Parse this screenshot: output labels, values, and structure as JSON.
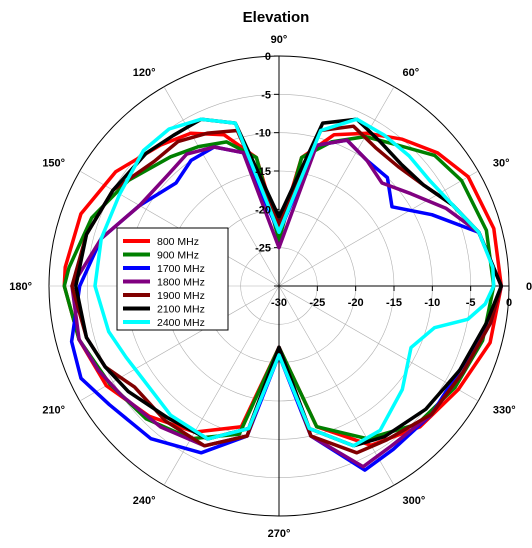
{
  "chart_data": {
    "type": "polar-line",
    "title": "Elevation",
    "angle_unit": "deg",
    "angle_ticks": [
      {
        "deg": 0,
        "label": "0°"
      },
      {
        "deg": 30,
        "label": "30°"
      },
      {
        "deg": 60,
        "label": "60°"
      },
      {
        "deg": 90,
        "label": "90°"
      },
      {
        "deg": 120,
        "label": "120°"
      },
      {
        "deg": 150,
        "label": "150°"
      },
      {
        "deg": 180,
        "label": "180°"
      },
      {
        "deg": 210,
        "label": "210°"
      },
      {
        "deg": 240,
        "label": "240°"
      },
      {
        "deg": 270,
        "label": "270°"
      },
      {
        "deg": 300,
        "label": "300°"
      },
      {
        "deg": 330,
        "label": "330°"
      }
    ],
    "radial_range": [
      -30,
      0
    ],
    "radial_ticks": [
      {
        "value": -30,
        "label": "-30"
      },
      {
        "value": -25,
        "label": "-25"
      },
      {
        "value": -20,
        "label": "-20"
      },
      {
        "value": -15,
        "label": "-15"
      },
      {
        "value": -10,
        "label": "-10"
      },
      {
        "value": -5,
        "label": "-5"
      },
      {
        "value": 0,
        "label": "0"
      }
    ],
    "grid": true,
    "legend": "middle-left",
    "series": [
      {
        "name": "800 MHz",
        "color": "#ff0000",
        "points": [
          [
            0,
            -1
          ],
          [
            15,
            -1
          ],
          [
            30,
            -1.5
          ],
          [
            40,
            -3
          ],
          [
            50,
            -5
          ],
          [
            60,
            -7
          ],
          [
            70,
            -9
          ],
          [
            80,
            -13
          ],
          [
            90,
            -23
          ],
          [
            100,
            -13
          ],
          [
            110,
            -9
          ],
          [
            120,
            -7
          ],
          [
            130,
            -6
          ],
          [
            145,
            -4
          ],
          [
            160,
            -2.5
          ],
          [
            175,
            -2
          ],
          [
            180,
            -2
          ],
          [
            195,
            -3
          ],
          [
            210,
            -4
          ],
          [
            225,
            -6
          ],
          [
            240,
            -8
          ],
          [
            255,
            -11
          ],
          [
            270,
            -22
          ],
          [
            285,
            -11
          ],
          [
            300,
            -6
          ],
          [
            315,
            -4
          ],
          [
            330,
            -3
          ],
          [
            345,
            -1.5
          ],
          [
            360,
            -1
          ]
        ]
      },
      {
        "name": "900 MHz",
        "color": "#008000",
        "points": [
          [
            0,
            -2
          ],
          [
            15,
            -2
          ],
          [
            30,
            -2.5
          ],
          [
            40,
            -3.5
          ],
          [
            50,
            -6
          ],
          [
            60,
            -7.5
          ],
          [
            70,
            -10
          ],
          [
            80,
            -13
          ],
          [
            90,
            -24
          ],
          [
            100,
            -13
          ],
          [
            110,
            -10
          ],
          [
            120,
            -9
          ],
          [
            130,
            -8
          ],
          [
            145,
            -6
          ],
          [
            160,
            -4
          ],
          [
            175,
            -2.5
          ],
          [
            180,
            -2
          ],
          [
            195,
            -3
          ],
          [
            210,
            -4.5
          ],
          [
            225,
            -5.5
          ],
          [
            240,
            -7
          ],
          [
            255,
            -10
          ],
          [
            270,
            -22
          ],
          [
            285,
            -11
          ],
          [
            300,
            -7
          ],
          [
            315,
            -4.5
          ],
          [
            330,
            -3.5
          ],
          [
            345,
            -2.5
          ],
          [
            360,
            -2
          ]
        ]
      },
      {
        "name": "1700 MHz",
        "color": "#0000ff",
        "points": [
          [
            0,
            -1
          ],
          [
            15,
            -3
          ],
          [
            25,
            -8
          ],
          [
            35,
            -12
          ],
          [
            45,
            -10
          ],
          [
            55,
            -10
          ],
          [
            65,
            -9
          ],
          [
            75,
            -11
          ],
          [
            90,
            -23
          ],
          [
            105,
            -12
          ],
          [
            115,
            -10
          ],
          [
            125,
            -10
          ],
          [
            135,
            -11
          ],
          [
            150,
            -9
          ],
          [
            165,
            -6
          ],
          [
            180,
            -4
          ],
          [
            195,
            -2
          ],
          [
            205,
            -1.5
          ],
          [
            215,
            -3
          ],
          [
            230,
            -4
          ],
          [
            245,
            -6
          ],
          [
            258,
            -10
          ],
          [
            270,
            -21
          ],
          [
            282,
            -10
          ],
          [
            295,
            -3.5
          ],
          [
            305,
            -4
          ],
          [
            320,
            -4
          ],
          [
            335,
            -4
          ],
          [
            350,
            -2
          ],
          [
            360,
            -1
          ]
        ]
      },
      {
        "name": "1800 MHz",
        "color": "#800080",
        "points": [
          [
            0,
            -1
          ],
          [
            15,
            -3
          ],
          [
            25,
            -6
          ],
          [
            35,
            -9
          ],
          [
            45,
            -11
          ],
          [
            55,
            -10
          ],
          [
            65,
            -9
          ],
          [
            75,
            -11
          ],
          [
            90,
            -25
          ],
          [
            105,
            -12
          ],
          [
            115,
            -10
          ],
          [
            125,
            -9
          ],
          [
            135,
            -9.5
          ],
          [
            150,
            -9
          ],
          [
            165,
            -6
          ],
          [
            180,
            -3
          ],
          [
            195,
            -3
          ],
          [
            205,
            -4
          ],
          [
            215,
            -5
          ],
          [
            230,
            -6
          ],
          [
            245,
            -7
          ],
          [
            258,
            -10
          ],
          [
            270,
            -22
          ],
          [
            282,
            -10
          ],
          [
            295,
            -4
          ],
          [
            305,
            -4.5
          ],
          [
            320,
            -4
          ],
          [
            335,
            -3.5
          ],
          [
            350,
            -2
          ],
          [
            360,
            -1
          ]
        ]
      },
      {
        "name": "1900 MHz",
        "color": "#800000",
        "points": [
          [
            0,
            -1
          ],
          [
            15,
            -3
          ],
          [
            25,
            -5
          ],
          [
            35,
            -7
          ],
          [
            45,
            -8
          ],
          [
            55,
            -8
          ],
          [
            65,
            -7
          ],
          [
            75,
            -9
          ],
          [
            90,
            -22
          ],
          [
            105,
            -9
          ],
          [
            115,
            -8
          ],
          [
            125,
            -7
          ],
          [
            135,
            -7
          ],
          [
            150,
            -5
          ],
          [
            165,
            -4
          ],
          [
            180,
            -3
          ],
          [
            195,
            -4
          ],
          [
            205,
            -5
          ],
          [
            215,
            -7
          ],
          [
            230,
            -7
          ],
          [
            245,
            -7
          ],
          [
            258,
            -10
          ],
          [
            270,
            -22
          ],
          [
            282,
            -10
          ],
          [
            295,
            -6
          ],
          [
            305,
            -5.5
          ],
          [
            320,
            -4
          ],
          [
            335,
            -3.5
          ],
          [
            350,
            -2
          ],
          [
            360,
            -1
          ]
        ]
      },
      {
        "name": "2100 MHz",
        "color": "#000000",
        "points": [
          [
            0,
            -1
          ],
          [
            15,
            -3
          ],
          [
            25,
            -5
          ],
          [
            35,
            -7
          ],
          [
            45,
            -7.5
          ],
          [
            55,
            -7
          ],
          [
            65,
            -6
          ],
          [
            75,
            -8
          ],
          [
            90,
            -21
          ],
          [
            105,
            -8
          ],
          [
            115,
            -6
          ],
          [
            125,
            -6
          ],
          [
            135,
            -5.5
          ],
          [
            150,
            -5
          ],
          [
            165,
            -4
          ],
          [
            180,
            -3.5
          ],
          [
            195,
            -4
          ],
          [
            205,
            -5
          ],
          [
            215,
            -6
          ],
          [
            230,
            -7.5
          ],
          [
            245,
            -8
          ],
          [
            258,
            -11
          ],
          [
            270,
            -22
          ],
          [
            282,
            -11
          ],
          [
            295,
            -7
          ],
          [
            305,
            -6
          ],
          [
            320,
            -5
          ],
          [
            335,
            -4
          ],
          [
            350,
            -2.5
          ],
          [
            360,
            -1
          ]
        ]
      },
      {
        "name": "2400 MHz",
        "color": "#00ffff",
        "points": [
          [
            0,
            -2
          ],
          [
            5,
            -2
          ],
          [
            15,
            -3
          ],
          [
            25,
            -5
          ],
          [
            35,
            -6
          ],
          [
            45,
            -6
          ],
          [
            55,
            -6
          ],
          [
            65,
            -6
          ],
          [
            75,
            -9
          ],
          [
            90,
            -23
          ],
          [
            105,
            -8
          ],
          [
            115,
            -6
          ],
          [
            125,
            -5
          ],
          [
            135,
            -5
          ],
          [
            150,
            -6
          ],
          [
            165,
            -6
          ],
          [
            180,
            -6
          ],
          [
            195,
            -7
          ],
          [
            205,
            -8
          ],
          [
            215,
            -8.5
          ],
          [
            230,
            -8
          ],
          [
            245,
            -8
          ],
          [
            258,
            -11
          ],
          [
            270,
            -21
          ],
          [
            282,
            -11
          ],
          [
            295,
            -7
          ],
          [
            305,
            -7
          ],
          [
            320,
            -9
          ],
          [
            335,
            -11
          ],
          [
            345,
            -9
          ],
          [
            350,
            -5
          ],
          [
            355,
            -3
          ],
          [
            360,
            -2
          ]
        ]
      }
    ]
  }
}
